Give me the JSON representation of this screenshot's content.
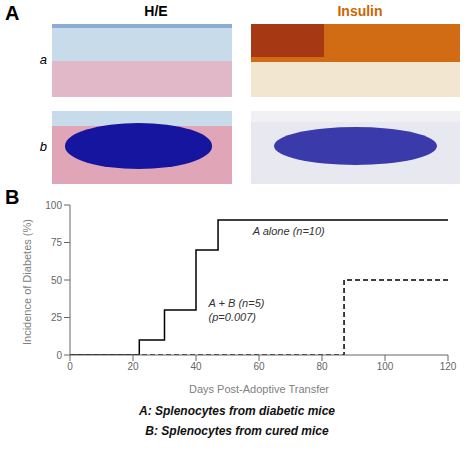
{
  "chart_data": {
    "type": "line",
    "x_label": "Days Post-Adoptive Transfer",
    "y_label": "Incidence of Diabetes (%)",
    "series": [
      {
        "x": [
          0,
          22,
          22,
          30,
          30,
          40,
          40,
          47,
          47,
          120
        ],
        "values": [
          0,
          0,
          10,
          10,
          30,
          30,
          70,
          70,
          90,
          90
        ],
        "color": "#000000",
        "line_style": "solid"
      },
      {
        "x": [
          0,
          87,
          87,
          120
        ],
        "values": [
          0,
          0,
          50,
          50
        ],
        "color": "#000000",
        "line_style": "dashed"
      }
    ],
    "annotations": [
      {
        "text": "A alone (n=10)",
        "x": 58,
        "y": 83
      },
      {
        "text": "A + B (n=5)\n(p=0.007)",
        "x": 44,
        "y": 30
      }
    ],
    "xlim": [
      0,
      120
    ],
    "ylim": [
      0,
      100
    ],
    "xticks": [
      0,
      20,
      40,
      60,
      80,
      100,
      120
    ],
    "yticks": [
      0,
      25,
      50,
      75,
      100
    ],
    "panel_labels": [
      "A",
      "B"
    ],
    "column_labels": [
      "H/E",
      "Insulin"
    ],
    "column_label_colors": [
      "#000000",
      "#cc6600"
    ],
    "row_labels": [
      "a",
      "b"
    ],
    "caption": [
      "A: Splenocytes from diabetic mice",
      "B: Splenocytes from cured mice"
    ]
  }
}
